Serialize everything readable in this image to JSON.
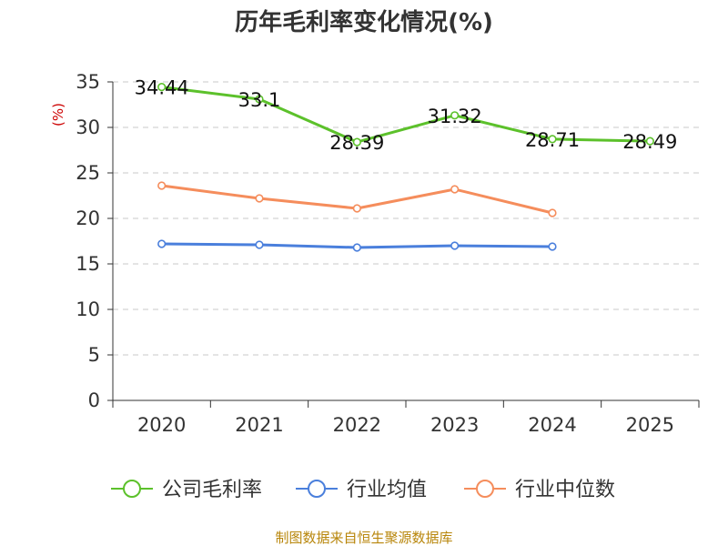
{
  "chart_data": {
    "type": "line",
    "title": "历年毛利率变化情况(%)",
    "ylabel": "(%)",
    "xlabel": "",
    "categories": [
      "2020",
      "2021",
      "2022",
      "2023",
      "2024",
      "2025"
    ],
    "ylim": [
      0,
      35
    ],
    "yticks": [
      0,
      5,
      10,
      15,
      20,
      25,
      30,
      35
    ],
    "grid": true,
    "legend_position": "bottom",
    "series": [
      {
        "name": "公司毛利率",
        "color": "#5cc12b",
        "values": [
          34.44,
          33.1,
          28.39,
          31.32,
          28.71,
          28.49
        ],
        "labels": [
          "34.44",
          "33.1",
          "28.39",
          "31.32",
          "28.71",
          "28.49"
        ]
      },
      {
        "name": "行业均值",
        "color": "#4a7fdc",
        "values": [
          17.2,
          17.1,
          16.8,
          17.0,
          16.9,
          null
        ]
      },
      {
        "name": "行业中位数",
        "color": "#f58d5c",
        "values": [
          23.6,
          22.2,
          21.1,
          23.2,
          20.6,
          null
        ]
      }
    ],
    "source": "制图数据来自恒生聚源数据库"
  }
}
